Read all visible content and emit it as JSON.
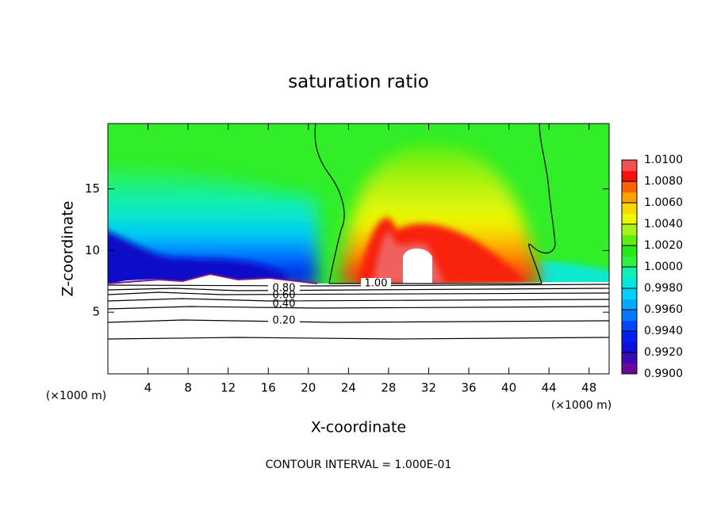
{
  "chart_data": {
    "type": "contour",
    "title": "saturation ratio",
    "x_label": "X-coordinate",
    "y_label": "Z-coordinate",
    "unit_labels": [
      "(×1000 m)",
      "(×1000 m)"
    ],
    "footer": "CONTOUR INTERVAL = 1.000E-01",
    "contour_labels": [
      "1.00",
      "0.80",
      "0.60",
      "0.40",
      "0.20"
    ],
    "xlim": [
      0,
      50
    ],
    "xticks": [
      4,
      8,
      12,
      16,
      20,
      24,
      28,
      32,
      36,
      40,
      44,
      48
    ],
    "ylim": [
      0,
      20.3
    ],
    "yticks": [
      5,
      10,
      15
    ],
    "colorbar": {
      "lim": [
        0.99,
        1.01
      ],
      "ticks": [
        {
          "value": 0.99,
          "label": "0.9900"
        },
        {
          "value": 0.992,
          "label": "0.9920"
        },
        {
          "value": 0.994,
          "label": "0.9940"
        },
        {
          "value": 0.996,
          "label": "0.9960"
        },
        {
          "value": 0.998,
          "label": "0.9980"
        },
        {
          "value": 1.0,
          "label": "1.0000"
        },
        {
          "value": 1.002,
          "label": "1.0020"
        },
        {
          "value": 1.004,
          "label": "1.0040"
        },
        {
          "value": 1.006,
          "label": "1.0060"
        },
        {
          "value": 1.008,
          "label": "1.0080"
        },
        {
          "value": 1.01,
          "label": "1.0100"
        }
      ],
      "colors": [
        "#6a0a9a",
        "#3a0ab8",
        "#1010d8",
        "#0020f0",
        "#0048ff",
        "#0078ff",
        "#00a8ff",
        "#00d0f8",
        "#00e8e0",
        "#10f0b0",
        "#30f040",
        "#28e818",
        "#60ee10",
        "#a8f418",
        "#f0f800",
        "#f8d800",
        "#ffa000",
        "#ff6000",
        "#f81010",
        "#f05050"
      ]
    }
  }
}
